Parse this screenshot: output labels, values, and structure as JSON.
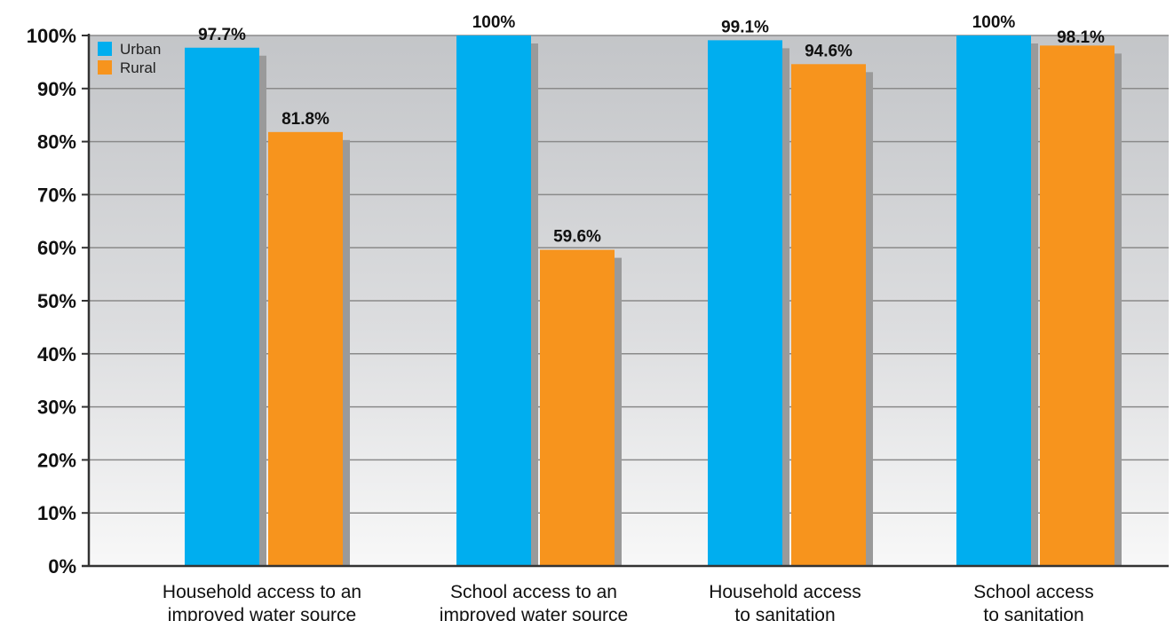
{
  "chart_data": {
    "type": "bar",
    "categories": [
      [
        "Household access to an",
        "improved water source"
      ],
      [
        "School access to an",
        "improved water source"
      ],
      [
        "Household access",
        "to sanitation"
      ],
      [
        "School access",
        "to sanitation"
      ]
    ],
    "series": [
      {
        "name": "Urban",
        "color": "#00aeef",
        "values": [
          97.7,
          100,
          99.1,
          100
        ],
        "labels": [
          "97.7%",
          "100%",
          "99.1%",
          "100%"
        ]
      },
      {
        "name": "Rural",
        "color": "#f7941d",
        "values": [
          81.8,
          59.6,
          94.6,
          98.1
        ],
        "labels": [
          "81.8%",
          "59.6%",
          "94.6%",
          "98.1%"
        ]
      }
    ],
    "ylim": [
      0,
      100
    ],
    "yticks": [
      0,
      10,
      20,
      30,
      40,
      50,
      60,
      70,
      80,
      90,
      100
    ],
    "ytick_labels": [
      "0%",
      "10%",
      "20%",
      "30%",
      "40%",
      "50%",
      "60%",
      "70%",
      "80%",
      "90%",
      "100%"
    ],
    "title": "",
    "xlabel": "",
    "ylabel": "",
    "grid": true,
    "legend_position": "top-left"
  }
}
